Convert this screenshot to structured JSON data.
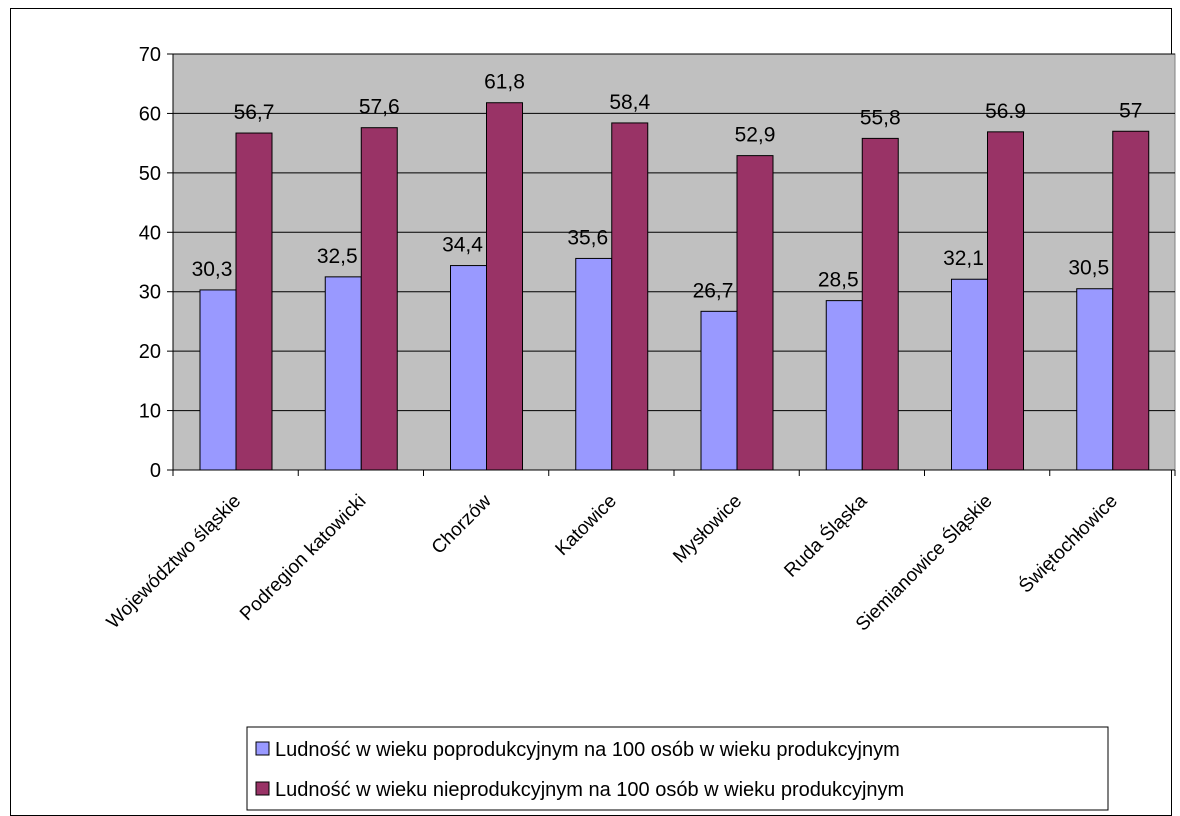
{
  "chart_data": {
    "type": "bar",
    "title": "",
    "xlabel": "",
    "ylabel": "",
    "ylim": [
      0,
      70
    ],
    "yticks": [
      0,
      10,
      20,
      30,
      40,
      50,
      60,
      70
    ],
    "grid": true,
    "legend_position": "bottom",
    "categories": [
      "Województwo śląskie",
      "Podregion katowicki",
      "Chorzów",
      "Katowice",
      "Mysłowice",
      "Ruda Śląska",
      "Siemianowice Śląskie",
      "Świętochłowice"
    ],
    "series": [
      {
        "name": "Ludność w wieku poprodukcyjnym na 100 osób w wieku produkcyjnym",
        "color": "#9999ff",
        "values": [
          30.3,
          32.5,
          34.4,
          35.6,
          26.7,
          28.5,
          32.1,
          30.5
        ],
        "labels": [
          "30,3",
          "32,5",
          "34,4",
          "35,6",
          "26,7",
          "28,5",
          "32,1",
          "30,5"
        ]
      },
      {
        "name": "Ludność w wieku nieprodukcyjnym na 100 osób w wieku produkcyjnym",
        "color": "#993366",
        "values": [
          56.7,
          57.6,
          61.8,
          58.4,
          52.9,
          55.8,
          56.9,
          57
        ],
        "labels": [
          "56,7",
          "57,6",
          "61,8",
          "58,4",
          "52,9",
          "55,8",
          "56.9",
          "57"
        ]
      }
    ],
    "plot_background": "#c0c0c0"
  }
}
